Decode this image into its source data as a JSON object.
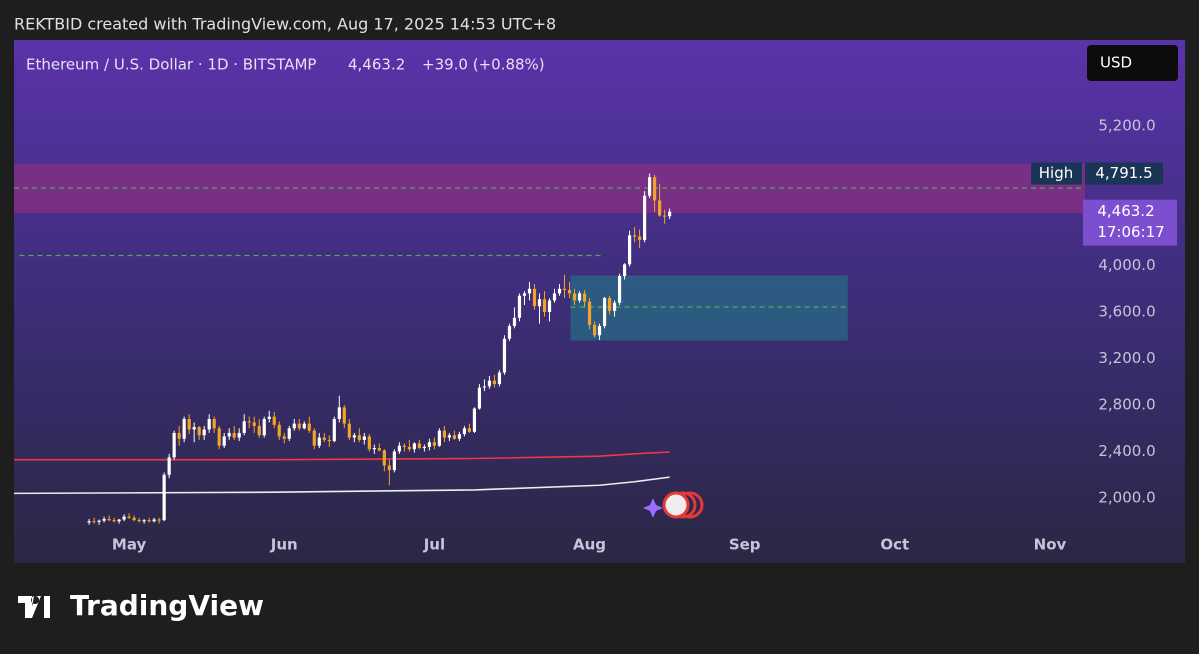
{
  "page": {
    "attribution": "REKTBID created with TradingView.com, Aug 17, 2025 14:53 UTC+8",
    "brand": "TradingView",
    "currency_button": "USD"
  },
  "chart_data": {
    "type": "candlestick",
    "title": "Ethereum / U.S. Dollar · 1D · BITSTAMP",
    "last_price": {
      "value": 4463.2,
      "label": "4,463.2"
    },
    "change": "+39.0 (+0.88%)",
    "countdown": "17:06:17",
    "high_label": "High",
    "high": {
      "value": 4791.5,
      "label": "4,791.5"
    },
    "up_color": "#ffffff",
    "down_color": "#f5a229",
    "xlim": [
      98,
      312
    ],
    "ylim": [
      1725,
      5940
    ],
    "grid": false,
    "xticks": [
      {
        "value": 121,
        "label": "May"
      },
      {
        "value": 152,
        "label": "Jun"
      },
      {
        "value": 182,
        "label": "Jul"
      },
      {
        "value": 213,
        "label": "Aug"
      },
      {
        "value": 244,
        "label": "Sep"
      },
      {
        "value": 274,
        "label": "Oct"
      },
      {
        "value": 305,
        "label": "Nov"
      }
    ],
    "yticks": [
      {
        "value": 2000,
        "label": "2,000.0"
      },
      {
        "value": 2400,
        "label": "2,400.0"
      },
      {
        "value": 2800,
        "label": "2,800.0"
      },
      {
        "value": 3200,
        "label": "3,200.0"
      },
      {
        "value": 3600,
        "label": "3,600.0"
      },
      {
        "value": 4000,
        "label": "4,000.0"
      },
      {
        "value": 5200,
        "label": "5,200.0"
      }
    ],
    "zones": [
      {
        "y": [
          4452,
          4873
        ],
        "color": "#a0307e"
      },
      {
        "x": [
          209.2,
          264.6
        ],
        "y": [
          3355,
          3914
        ],
        "color": "#1f7f8a"
      }
    ],
    "levels": [
      {
        "y": 4667,
        "color": "#4caf50"
      },
      {
        "y": 4086,
        "x": [
          99.1,
          215.5
        ],
        "color": "#4caf50"
      },
      {
        "y": 3643,
        "x": [
          209.2,
          264.6
        ],
        "color": "#4caf50"
      }
    ],
    "moving_averages": [
      {
        "color": "#f23645",
        "x": [
          98,
          150,
          190,
          215,
          222,
          229
        ],
        "values": [
          2330,
          2330,
          2340,
          2360,
          2380,
          2396
        ]
      },
      {
        "color": "#ececec",
        "x": [
          98,
          150,
          190,
          215,
          222,
          229
        ],
        "values": [
          2040,
          2050,
          2070,
          2110,
          2140,
          2180
        ]
      }
    ],
    "candles": {
      "x": [
        113,
        114,
        115,
        116,
        117,
        118,
        119,
        120,
        121,
        122,
        123,
        124,
        125,
        126,
        127,
        128,
        129,
        130,
        131,
        132,
        133,
        134,
        135,
        136,
        137,
        138,
        139,
        140,
        141,
        142,
        143,
        144,
        145,
        146,
        147,
        148,
        149,
        150,
        151,
        152,
        153,
        154,
        155,
        156,
        157,
        158,
        159,
        160,
        161,
        162,
        163,
        164,
        165,
        166,
        167,
        168,
        169,
        170,
        171,
        172,
        173,
        174,
        175,
        176,
        177,
        178,
        179,
        180,
        181,
        182,
        183,
        184,
        185,
        186,
        187,
        188,
        189,
        190,
        191,
        192,
        193,
        194,
        195,
        196,
        197,
        198,
        199,
        200,
        201,
        202,
        203,
        204,
        205,
        206,
        207,
        208,
        209,
        210,
        211,
        212,
        213,
        214,
        215,
        216,
        217,
        218,
        219,
        220,
        221,
        222,
        223,
        224,
        225,
        226,
        227,
        228,
        229
      ],
      "ohlc": [
        [
          1790,
          1820,
          1770,
          1800
        ],
        [
          1800,
          1830,
          1780,
          1795
        ],
        [
          1795,
          1815,
          1770,
          1805
        ],
        [
          1805,
          1840,
          1790,
          1820
        ],
        [
          1820,
          1850,
          1800,
          1810
        ],
        [
          1810,
          1830,
          1790,
          1800
        ],
        [
          1800,
          1820,
          1780,
          1815
        ],
        [
          1815,
          1860,
          1800,
          1840
        ],
        [
          1840,
          1870,
          1820,
          1830
        ],
        [
          1830,
          1850,
          1800,
          1810
        ],
        [
          1810,
          1830,
          1790,
          1800
        ],
        [
          1800,
          1820,
          1780,
          1810
        ],
        [
          1810,
          1830,
          1790,
          1800
        ],
        [
          1800,
          1830,
          1790,
          1815
        ],
        [
          1815,
          1830,
          1780,
          1810
        ],
        [
          1810,
          2220,
          1800,
          2200
        ],
        [
          2200,
          2380,
          2170,
          2350
        ],
        [
          2350,
          2580,
          2330,
          2560
        ],
        [
          2560,
          2620,
          2450,
          2510
        ],
        [
          2510,
          2700,
          2480,
          2680
        ],
        [
          2680,
          2720,
          2550,
          2590
        ],
        [
          2590,
          2650,
          2480,
          2610
        ],
        [
          2610,
          2620,
          2500,
          2540
        ],
        [
          2540,
          2620,
          2500,
          2590
        ],
        [
          2590,
          2720,
          2560,
          2680
        ],
        [
          2680,
          2700,
          2560,
          2600
        ],
        [
          2600,
          2620,
          2420,
          2450
        ],
        [
          2450,
          2560,
          2430,
          2530
        ],
        [
          2530,
          2600,
          2500,
          2560
        ],
        [
          2560,
          2620,
          2500,
          2520
        ],
        [
          2520,
          2600,
          2490,
          2560
        ],
        [
          2560,
          2720,
          2540,
          2660
        ],
        [
          2660,
          2700,
          2600,
          2650
        ],
        [
          2650,
          2700,
          2560,
          2620
        ],
        [
          2620,
          2680,
          2520,
          2540
        ],
        [
          2540,
          2700,
          2520,
          2680
        ],
        [
          2680,
          2750,
          2650,
          2700
        ],
        [
          2700,
          2740,
          2600,
          2630
        ],
        [
          2630,
          2660,
          2500,
          2530
        ],
        [
          2530,
          2560,
          2470,
          2510
        ],
        [
          2510,
          2620,
          2490,
          2600
        ],
        [
          2600,
          2680,
          2580,
          2640
        ],
        [
          2640,
          2680,
          2580,
          2600
        ],
        [
          2600,
          2660,
          2590,
          2640
        ],
        [
          2640,
          2700,
          2560,
          2580
        ],
        [
          2580,
          2600,
          2420,
          2450
        ],
        [
          2450,
          2560,
          2430,
          2520
        ],
        [
          2520,
          2560,
          2480,
          2500
        ],
        [
          2500,
          2540,
          2440,
          2490
        ],
        [
          2490,
          2700,
          2480,
          2680
        ],
        [
          2680,
          2880,
          2650,
          2780
        ],
        [
          2780,
          2800,
          2600,
          2640
        ],
        [
          2640,
          2680,
          2500,
          2520
        ],
        [
          2520,
          2560,
          2480,
          2540
        ],
        [
          2540,
          2600,
          2480,
          2500
        ],
        [
          2500,
          2560,
          2460,
          2530
        ],
        [
          2530,
          2550,
          2400,
          2420
        ],
        [
          2420,
          2460,
          2380,
          2430
        ],
        [
          2430,
          2470,
          2400,
          2410
        ],
        [
          2410,
          2420,
          2230,
          2280
        ],
        [
          2280,
          2330,
          2110,
          2240
        ],
        [
          2240,
          2420,
          2220,
          2400
        ],
        [
          2400,
          2480,
          2380,
          2450
        ],
        [
          2450,
          2470,
          2400,
          2440
        ],
        [
          2440,
          2500,
          2400,
          2420
        ],
        [
          2420,
          2480,
          2390,
          2470
        ],
        [
          2470,
          2500,
          2420,
          2430
        ],
        [
          2430,
          2460,
          2400,
          2440
        ],
        [
          2440,
          2510,
          2410,
          2480
        ],
        [
          2480,
          2520,
          2420,
          2450
        ],
        [
          2450,
          2600,
          2440,
          2580
        ],
        [
          2580,
          2620,
          2480,
          2520
        ],
        [
          2520,
          2560,
          2490,
          2540
        ],
        [
          2540,
          2580,
          2500,
          2510
        ],
        [
          2510,
          2570,
          2490,
          2550
        ],
        [
          2550,
          2620,
          2530,
          2600
        ],
        [
          2600,
          2640,
          2560,
          2570
        ],
        [
          2570,
          2780,
          2560,
          2770
        ],
        [
          2770,
          2980,
          2760,
          2950
        ],
        [
          2950,
          3020,
          2920,
          2960
        ],
        [
          2960,
          3050,
          2940,
          3010
        ],
        [
          3010,
          3060,
          2950,
          2980
        ],
        [
          2980,
          3100,
          2960,
          3080
        ],
        [
          3080,
          3400,
          3060,
          3370
        ],
        [
          3370,
          3500,
          3350,
          3480
        ],
        [
          3480,
          3640,
          3460,
          3550
        ],
        [
          3550,
          3760,
          3520,
          3740
        ],
        [
          3740,
          3780,
          3660,
          3760
        ],
        [
          3760,
          3860,
          3700,
          3800
        ],
        [
          3800,
          3840,
          3620,
          3650
        ],
        [
          3650,
          3760,
          3500,
          3710
        ],
        [
          3710,
          3780,
          3560,
          3600
        ],
        [
          3600,
          3720,
          3520,
          3700
        ],
        [
          3700,
          3800,
          3680,
          3760
        ],
        [
          3760,
          3840,
          3740,
          3800
        ],
        [
          3800,
          3920,
          3720,
          3790
        ],
        [
          3790,
          3860,
          3720,
          3760
        ],
        [
          3760,
          3800,
          3660,
          3700
        ],
        [
          3700,
          3780,
          3680,
          3760
        ],
        [
          3760,
          3790,
          3640,
          3690
        ],
        [
          3690,
          3720,
          3450,
          3490
        ],
        [
          3490,
          3520,
          3380,
          3400
        ],
        [
          3400,
          3500,
          3360,
          3480
        ],
        [
          3480,
          3730,
          3460,
          3720
        ],
        [
          3720,
          3740,
          3580,
          3610
        ],
        [
          3610,
          3700,
          3560,
          3680
        ],
        [
          3680,
          3930,
          3660,
          3910
        ],
        [
          3910,
          4020,
          3880,
          4010
        ],
        [
          4010,
          4300,
          3990,
          4260
        ],
        [
          4260,
          4330,
          4200,
          4250
        ],
        [
          4250,
          4310,
          4150,
          4220
        ],
        [
          4220,
          4640,
          4200,
          4600
        ],
        [
          4600,
          4791.5,
          4580,
          4760
        ],
        [
          4760,
          4780,
          4460,
          4560
        ],
        [
          4560,
          4700,
          4420,
          4430
        ],
        [
          4430,
          4480,
          4360,
          4424.2
        ],
        [
          4424.2,
          4490,
          4400,
          4463.2
        ]
      ]
    }
  }
}
